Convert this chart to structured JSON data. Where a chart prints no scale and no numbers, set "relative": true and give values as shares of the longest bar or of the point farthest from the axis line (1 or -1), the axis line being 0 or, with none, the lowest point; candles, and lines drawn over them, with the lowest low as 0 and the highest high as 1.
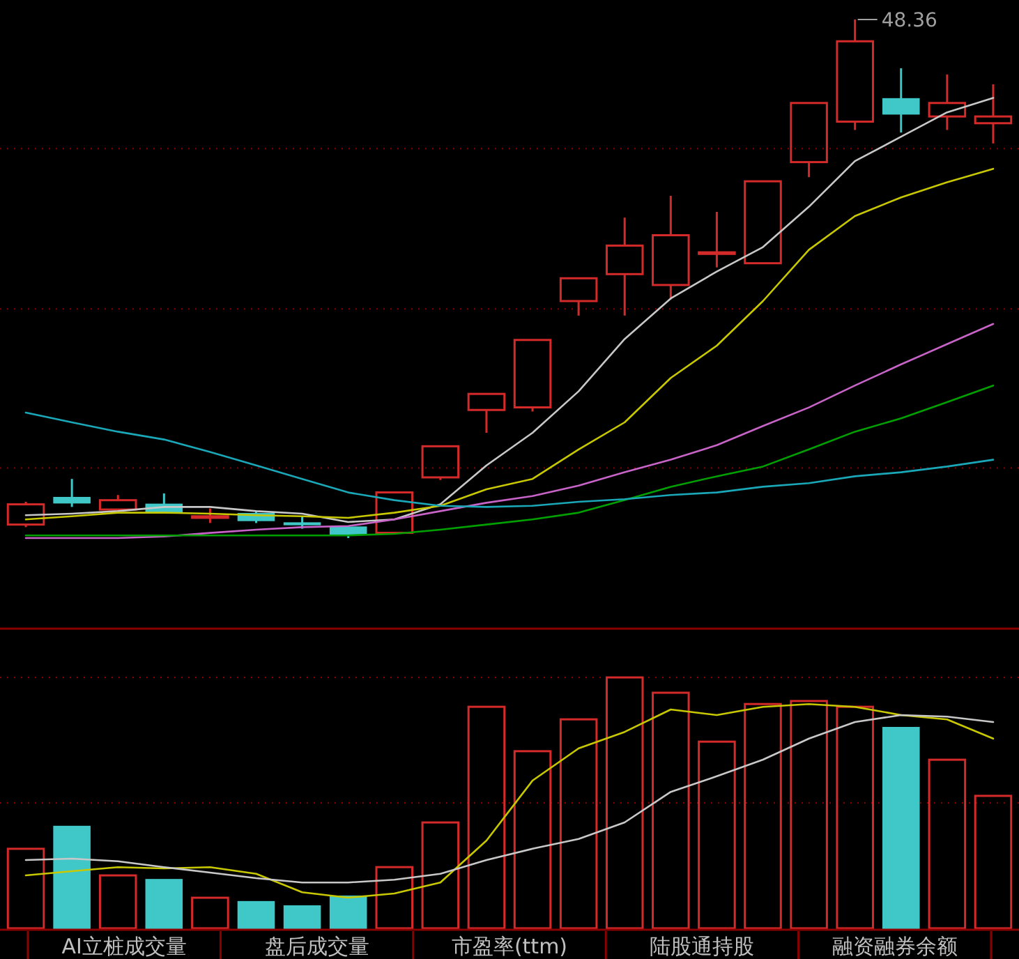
{
  "chart_data": [
    {
      "type": "candlestick",
      "relative": true,
      "categories": [
        null,
        null,
        null,
        null,
        null,
        null,
        null,
        null,
        null,
        null,
        null,
        null,
        null,
        null,
        null,
        null,
        null,
        null,
        null,
        null,
        null,
        null
      ],
      "ohlc": [
        [
          0.026,
          0.07,
          0.021,
          0.065
        ],
        [
          0.078,
          0.114,
          0.06,
          0.068
        ],
        [
          0.055,
          0.083,
          0.055,
          0.073
        ],
        [
          0.065,
          0.086,
          0.049,
          0.049
        ],
        [
          0.039,
          0.057,
          0.029,
          0.042
        ],
        [
          0.047,
          0.052,
          0.029,
          0.034
        ],
        [
          0.029,
          0.042,
          0.018,
          0.026
        ],
        [
          0.021,
          0.021,
          0,
          0.008
        ],
        [
          0.01,
          0.088,
          0.01,
          0.088
        ],
        [
          0.117,
          0.177,
          0.112,
          0.177
        ],
        [
          0.247,
          0.278,
          0.203,
          0.278
        ],
        [
          0.252,
          0.382,
          0.244,
          0.382
        ],
        [
          0.457,
          0.501,
          0.429,
          0.501
        ],
        [
          0.509,
          0.618,
          0.429,
          0.564
        ],
        [
          0.488,
          0.66,
          0.46,
          0.584
        ],
        [
          0.548,
          0.629,
          0.522,
          0.551
        ],
        [
          0.53,
          0.688,
          0.53,
          0.688
        ],
        [
          0.725,
          0.839,
          0.696,
          0.839
        ],
        [
          0.803,
          1,
          0.787,
          0.958
        ],
        [
          0.847,
          0.906,
          0.782,
          0.818
        ],
        [
          0.813,
          0.894,
          0.787,
          0.839
        ],
        [
          0.8,
          0.875,
          0.761,
          0.813
        ]
      ],
      "colors": [
        "#d42a2a",
        "#40c8c8",
        "#d42a2a",
        "#40c8c8",
        "#d42a2a",
        "#40c8c8",
        "#40c8c8",
        "#40c8c8",
        "#d42a2a",
        "#d42a2a",
        "#d42a2a",
        "#d42a2a",
        "#d42a2a",
        "#d42a2a",
        "#d42a2a",
        "#d42a2a",
        "#d42a2a",
        "#d42a2a",
        "#d42a2a",
        "#40c8c8",
        "#d42a2a",
        "#d42a2a"
      ],
      "series": [
        {
          "type": "line",
          "color": "#c8c8c8",
          "values": [
            0.044,
            0.047,
            0.052,
            0.06,
            0.06,
            0.052,
            0.047,
            0.031,
            0.036,
            0.065,
            0.14,
            0.203,
            0.283,
            0.384,
            0.462,
            0.514,
            0.561,
            0.639,
            0.727,
            0.774,
            0.821,
            0.849
          ]
        },
        {
          "type": "line",
          "color": "#c8c800",
          "values": [
            0.036,
            0.042,
            0.049,
            0.049,
            0.047,
            0.044,
            0.042,
            0.039,
            0.049,
            0.062,
            0.094,
            0.114,
            0.171,
            0.223,
            0.309,
            0.371,
            0.457,
            0.556,
            0.621,
            0.657,
            0.686,
            0.712
          ]
        },
        {
          "type": "line",
          "color": "#c864c8",
          "values": [
            0,
            0,
            0,
            0.003,
            0.01,
            0.016,
            0.021,
            0.023,
            0.036,
            0.052,
            0.068,
            0.081,
            0.101,
            0.127,
            0.151,
            0.179,
            0.216,
            0.252,
            0.294,
            0.335,
            0.374,
            0.413
          ]
        },
        {
          "type": "line",
          "color": "#00a000",
          "values": [
            0.005,
            0.005,
            0.005,
            0.005,
            0.005,
            0.005,
            0.005,
            0.005,
            0.008,
            0.016,
            0.026,
            0.036,
            0.049,
            0.073,
            0.099,
            0.119,
            0.138,
            0.171,
            0.205,
            0.231,
            0.262,
            0.294
          ]
        },
        {
          "type": "line",
          "color": "#1aa8b8",
          "values": [
            0.242,
            0.223,
            0.205,
            0.19,
            0.166,
            0.14,
            0.114,
            0.088,
            0.073,
            0.062,
            0.06,
            0.062,
            0.07,
            0.075,
            0.083,
            0.088,
            0.099,
            0.106,
            0.119,
            0.127,
            0.138,
            0.151
          ]
        }
      ],
      "ref_lines": [
        {
          "axis": "y",
          "value": 0.751,
          "color": "#8b0000",
          "line_style": "dotted"
        },
        {
          "axis": "y",
          "value": 0.442,
          "color": "#8b0000",
          "line_style": "dotted"
        },
        {
          "axis": "y",
          "value": 0.135,
          "color": "#8b0000",
          "line_style": "dotted"
        }
      ],
      "annotations": [
        "48.36"
      ]
    },
    {
      "type": "bar",
      "relative": true,
      "categories": [
        null,
        null,
        null,
        null,
        null,
        null,
        null,
        null,
        null,
        null,
        null,
        null,
        null,
        null,
        null,
        null,
        null,
        null,
        null,
        null,
        null,
        null
      ],
      "series": [
        {
          "type": "bar",
          "colors": [
            "#d42a2a",
            "#40c8c8",
            "#d42a2a",
            "#40c8c8",
            "#d42a2a",
            "#40c8c8",
            "#40c8c8",
            "#40c8c8",
            "#d42a2a",
            "#d42a2a",
            "#d42a2a",
            "#d42a2a",
            "#d42a2a",
            "#d42a2a",
            "#d42a2a",
            "#d42a2a",
            "#d42a2a",
            "#d42a2a",
            "#d42a2a",
            "#40c8c8",
            "#d42a2a",
            "#d42a2a"
          ],
          "values": [
            0.317,
            0.406,
            0.211,
            0.194,
            0.122,
            0.106,
            0.089,
            0.128,
            0.244,
            0.422,
            0.883,
            0.706,
            0.833,
            1,
            0.939,
            0.744,
            0.894,
            0.906,
            0.883,
            0.8,
            0.672,
            0.528
          ]
        },
        {
          "type": "line",
          "color": "#c8c800",
          "values": [
            0.211,
            0.228,
            0.244,
            0.239,
            0.244,
            0.217,
            0.144,
            0.122,
            0.139,
            0.183,
            0.35,
            0.589,
            0.717,
            0.783,
            0.872,
            0.85,
            0.883,
            0.894,
            0.883,
            0.85,
            0.833,
            0.756
          ]
        },
        {
          "type": "line",
          "color": "#c8c8c8",
          "values": [
            0.272,
            0.278,
            0.267,
            0.244,
            0.222,
            0.2,
            0.183,
            0.183,
            0.194,
            0.217,
            0.272,
            0.317,
            0.356,
            0.422,
            0.544,
            0.606,
            0.672,
            0.756,
            0.822,
            0.85,
            0.844,
            0.822
          ]
        }
      ],
      "ref_lines": [
        {
          "axis": "y",
          "value": 1,
          "color": "#8b0000",
          "line_style": "dotted"
        },
        {
          "axis": "y",
          "value": 0.5,
          "color": "#8b0000",
          "line_style": "dotted"
        }
      ],
      "annotations": [
        "AI立桩成交量",
        "盘后成交量",
        "市盈率(ttm)",
        "陆股通持股",
        "融资融券余额"
      ]
    }
  ]
}
